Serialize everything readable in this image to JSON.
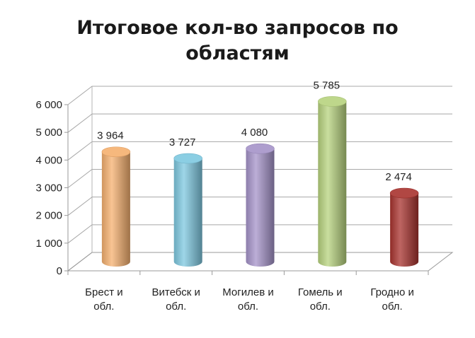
{
  "chart_data": {
    "type": "bar",
    "title_lines": [
      "Итоговое кол-во запросов по",
      "областям"
    ],
    "categories": [
      [
        "Брест и",
        "обл."
      ],
      [
        "Витебск и",
        "обл."
      ],
      [
        "Могилев и",
        "обл."
      ],
      [
        "Гомель и",
        "обл."
      ],
      [
        "Гродно и",
        "обл."
      ]
    ],
    "values": [
      3964,
      3727,
      4080,
      5785,
      2474
    ],
    "value_labels": [
      "3 964",
      "3 727",
      "4 080",
      "5 785",
      "2 474"
    ],
    "yticks": [
      "0",
      "1 000",
      "2 000",
      "3 000",
      "4 000",
      "5 000",
      "6 000"
    ],
    "ylim": [
      0,
      6000
    ],
    "grid": true,
    "legend": "none",
    "colors": [
      "#f5b06f",
      "#7ec8e0",
      "#a593c9",
      "#b7d37e",
      "#a8322e"
    ]
  }
}
